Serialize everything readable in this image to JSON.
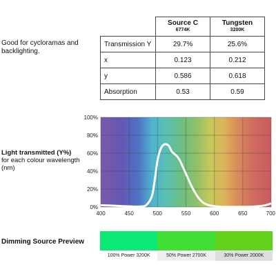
{
  "intro": {
    "text": "Good for cycloramas and backlighting."
  },
  "specs_table": {
    "columns": [
      {
        "name": "Source C",
        "sub": "6774K"
      },
      {
        "name": "Tungsten",
        "sub": "3200K"
      }
    ],
    "rows": [
      {
        "label": "Transmission Y",
        "values": [
          "29.7%",
          "25.6%"
        ]
      },
      {
        "label": "x",
        "values": [
          "0.123",
          "0.212"
        ]
      },
      {
        "label": "y",
        "values": [
          "0.586",
          "0.618"
        ]
      },
      {
        "label": "Absorption",
        "values": [
          "0.53",
          "0.59"
        ]
      }
    ]
  },
  "chart_label": {
    "title": "Light transmitted (Y%)",
    "subtitle": "for each colour wavelength (nm)"
  },
  "chart_data": {
    "type": "line",
    "title": "",
    "xlabel": "",
    "ylabel": "",
    "xlim": [
      400,
      700
    ],
    "ylim": [
      0,
      100
    ],
    "x_ticks": [
      400,
      450,
      500,
      550,
      600,
      650,
      700
    ],
    "y_ticks": [
      "0%",
      "20%",
      "40%",
      "60%",
      "80%",
      "100%"
    ],
    "y_tick_values": [
      0,
      20,
      40,
      60,
      80,
      100
    ],
    "grid": true,
    "line_color": "#ffffff",
    "series": [
      {
        "x": [
          400,
          420,
          440,
          460,
          470,
          480,
          490,
          495,
          500,
          505,
          510,
          515,
          520,
          525,
          530,
          535,
          540,
          545,
          550,
          555,
          560,
          570,
          580,
          590,
          600,
          610,
          620,
          640,
          660,
          680,
          690,
          700
        ],
        "y": [
          2,
          1.5,
          1,
          0.5,
          0.6,
          2,
          12,
          30,
          52,
          64,
          69,
          70,
          68,
          62,
          59,
          56,
          51,
          44,
          37,
          30,
          23,
          12,
          5,
          2,
          1,
          0.3,
          0.2,
          0.2,
          0.3,
          1,
          2,
          4
        ]
      }
    ]
  },
  "preview": {
    "title": "Dimming Source Preview",
    "swatches": [
      {
        "color": "#0ee875",
        "label": "100% Power 3200K"
      },
      {
        "color": "#3fdf35",
        "label": "50% Power 2700K"
      },
      {
        "color": "#62d21a",
        "label": "30% Power 2000K"
      }
    ],
    "caption_bg": [
      "#ffffff",
      "#efefef",
      "#dedede"
    ]
  }
}
